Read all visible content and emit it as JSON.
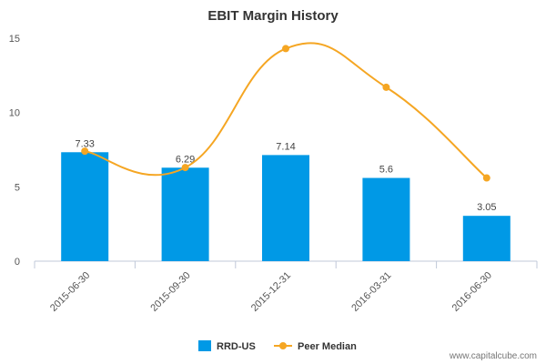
{
  "chart_data": {
    "type": "bar",
    "title": "EBIT Margin History",
    "xlabel": "",
    "ylabel": "",
    "categories": [
      "2015-06-30",
      "2015-09-30",
      "2015-12-31",
      "2016-03-31",
      "2016-06-30"
    ],
    "ylim": [
      0,
      15
    ],
    "yticks": [
      0,
      5,
      10,
      15
    ],
    "grid": false,
    "legend_position": "bottom-center",
    "series": [
      {
        "name": "RRD-US",
        "type": "bar",
        "color": "#0099e6",
        "values": [
          7.33,
          6.29,
          7.14,
          5.6,
          3.05
        ],
        "data_labels": [
          "7.33",
          "6.29",
          "7.14",
          "5.6",
          "3.05"
        ]
      },
      {
        "name": "Peer Median",
        "type": "line",
        "color": "#f5a623",
        "smooth": true,
        "values": [
          7.4,
          6.3,
          14.3,
          11.7,
          5.6
        ]
      }
    ]
  },
  "footer": {
    "source": "www.capitalcube.com"
  }
}
